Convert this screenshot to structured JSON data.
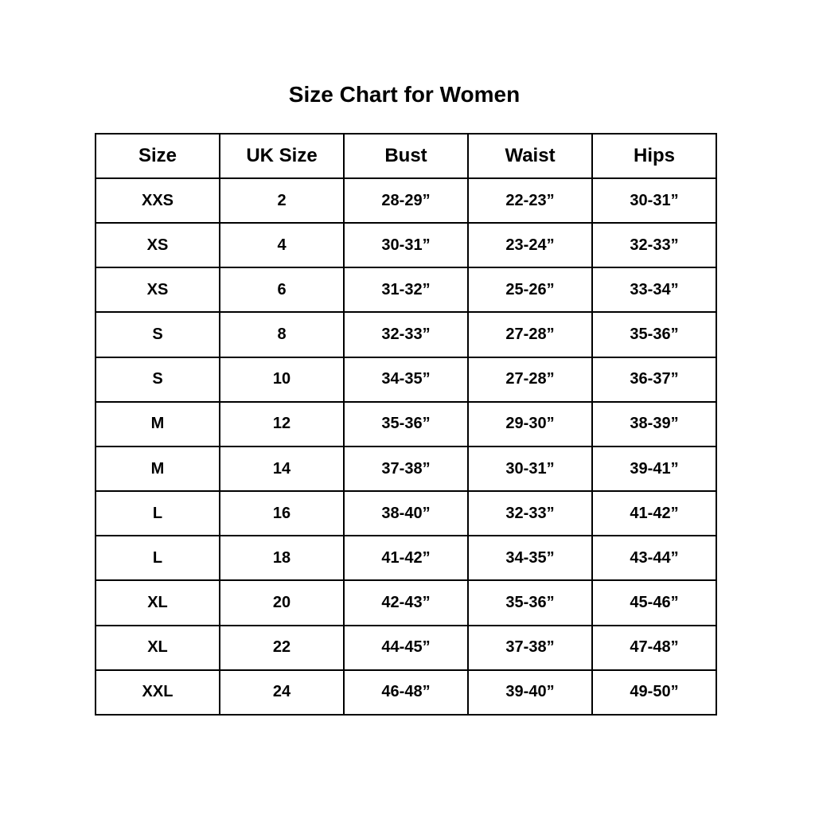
{
  "title": "Size Chart for Women",
  "columns": [
    "Size",
    "UK Size",
    "Bust",
    "Waist",
    "Hips"
  ],
  "rows": [
    [
      "XXS",
      "2",
      "28-29”",
      "22-23”",
      "30-31”"
    ],
    [
      "XS",
      "4",
      "30-31”",
      "23-24”",
      "32-33”"
    ],
    [
      "XS",
      "6",
      "31-32”",
      "25-26”",
      "33-34”"
    ],
    [
      "S",
      "8",
      "32-33”",
      "27-28”",
      "35-36”"
    ],
    [
      "S",
      "10",
      "34-35”",
      "27-28”",
      "36-37”"
    ],
    [
      "M",
      "12",
      "35-36”",
      "29-30”",
      "38-39”"
    ],
    [
      "M",
      "14",
      "37-38”",
      "30-31”",
      "39-41”"
    ],
    [
      "L",
      "16",
      "38-40”",
      "32-33”",
      "41-42”"
    ],
    [
      "L",
      "18",
      "41-42”",
      "34-35”",
      "43-44”"
    ],
    [
      "XL",
      "20",
      "42-43”",
      "35-36”",
      "45-46”"
    ],
    [
      "XL",
      "22",
      "44-45”",
      "37-38”",
      "47-48”"
    ],
    [
      "XXL",
      "24",
      "46-48”",
      "39-40”",
      "49-50”"
    ]
  ]
}
